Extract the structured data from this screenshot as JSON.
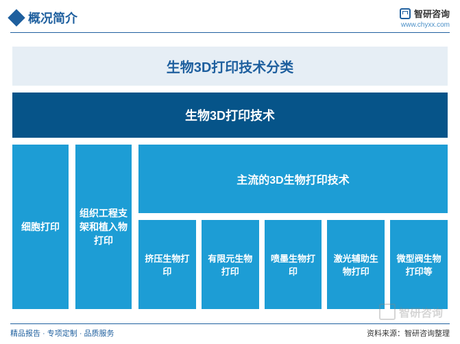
{
  "header": {
    "title": "概况简介",
    "brand_name": "智研咨询",
    "brand_url": "www.chyxx.com"
  },
  "diagram": {
    "type": "tree",
    "title": "生物3D打印技术分类",
    "root": "生物3D打印技术",
    "colors": {
      "title_bg": "#e6eef5",
      "title_text": "#1e5f9e",
      "root_bg": "#065489",
      "node_bg": "#1d9dd5",
      "node_text": "#ffffff",
      "background": "#ffffff",
      "accent": "#1e5f9e"
    },
    "categories": [
      {
        "label": "细胞打印"
      },
      {
        "label": "组织工程支架和植入物打印"
      }
    ],
    "subcategory_header": "主流的3D生物打印技术",
    "subcategories": [
      {
        "label": "挤压生物打印"
      },
      {
        "label": "有限元生物打印"
      },
      {
        "label": "喷墨生物打印"
      },
      {
        "label": "激光辅助生物打印"
      },
      {
        "label": "微型阀生物打印等"
      }
    ]
  },
  "footer": {
    "left": "精品报告 · 专项定制 · 品质服务",
    "right": "资料来源：智研咨询整理"
  },
  "watermark": {
    "text": "智研咨询"
  }
}
